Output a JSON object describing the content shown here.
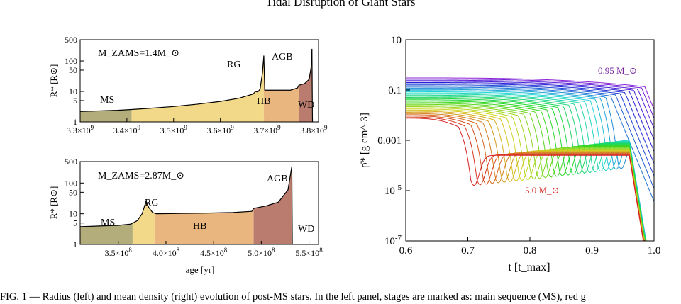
{
  "page": {
    "running_title": "Tidal Disruption of Giant Stars",
    "caption": "FIG. 1 — Radius (left) and mean density (right) evolution of post-MS stars. In the left panel, stages are marked as: main sequence (MS), red g"
  },
  "colors": {
    "ms": "#b3ad7c",
    "rg": "#f2d98a",
    "hb": "#e8b67e",
    "agb": "#b97c6e",
    "line": "#000000"
  },
  "chart_data": [
    {
      "type": "area",
      "id": "left-top",
      "annotation": "M_ZAMS=1.4M_⊙",
      "xlabel": "",
      "ylabel": "R* [R⊙]",
      "xlim": [
        3300000000.0,
        3810000000.0
      ],
      "ylim": [
        1,
        500
      ],
      "yscale": "log",
      "x_ticks": [
        "3.3×10^9",
        "3.4×10^9",
        "3.5×10^9",
        "3.6×10^9",
        "3.7×10^9",
        "3.8×10^9"
      ],
      "y_ticks": [
        "1",
        "5",
        "10",
        "50",
        "100",
        "500"
      ],
      "stages": [
        {
          "label": "MS",
          "start": 3300000000.0,
          "end": 3410000000.0,
          "color": "ms"
        },
        {
          "label": "",
          "start": 3410000000.0,
          "end": 3693000000.0,
          "color": "rg"
        },
        {
          "label": "RG",
          "start": 3693000000.0,
          "end": 3693000000.0,
          "color": "rg"
        },
        {
          "label": "HB",
          "start": 3693000000.0,
          "end": 3768000000.0,
          "color": "hb"
        },
        {
          "label": "AGB",
          "start": 3768000000.0,
          "end": 3796000000.0,
          "color": "agb"
        },
        {
          "label": "WD",
          "start": 3796000000.0,
          "end": 3810000000.0,
          "color": "none"
        }
      ],
      "radius": [
        [
          3300000000.0,
          2.2
        ],
        [
          3340000000.0,
          2.3
        ],
        [
          3380000000.0,
          2.4
        ],
        [
          3410000000.0,
          2.55
        ],
        [
          3450000000.0,
          2.8
        ],
        [
          3500000000.0,
          3.2
        ],
        [
          3550000000.0,
          3.8
        ],
        [
          3600000000.0,
          4.7
        ],
        [
          3640000000.0,
          6.0
        ],
        [
          3670000000.0,
          8.2
        ],
        [
          3675000000.0,
          10
        ],
        [
          3680000000.0,
          9.6
        ],
        [
          3685000000.0,
          12
        ],
        [
          3690000000.0,
          40
        ],
        [
          3693000000.0,
          150
        ],
        [
          3695000000.0,
          11
        ],
        [
          3720000000.0,
          11
        ],
        [
          3750000000.0,
          11
        ],
        [
          3765000000.0,
          13
        ],
        [
          3768000000.0,
          16
        ],
        [
          3780000000.0,
          18
        ],
        [
          3790000000.0,
          25
        ],
        [
          3794000000.0,
          60
        ],
        [
          3796000000.0,
          250
        ],
        [
          3797000000.0,
          1
        ]
      ]
    },
    {
      "type": "area",
      "id": "left-bottom",
      "annotation": "M_ZAMS=2.87M_⊙",
      "xlabel": "age [yr]",
      "ylabel": "R* [R⊙]",
      "xlim": [
        310000000.0,
        560000000.0
      ],
      "ylim": [
        1,
        500
      ],
      "yscale": "log",
      "x_ticks": [
        "3.5×10^8",
        "4.0×10^8",
        "4.5×10^8",
        "5.0×10^8",
        "5.5×10^8"
      ],
      "y_ticks": [
        "1",
        "5",
        "10",
        "50",
        "100",
        "500"
      ],
      "stages": [
        {
          "label": "MS",
          "start": 310000000.0,
          "end": 365000000.0,
          "color": "ms"
        },
        {
          "label": "RG",
          "start": 365000000.0,
          "end": 388000000.0,
          "color": "rg"
        },
        {
          "label": "HB",
          "start": 388000000.0,
          "end": 492000000.0,
          "color": "hb"
        },
        {
          "label": "AGB",
          "start": 492000000.0,
          "end": 532000000.0,
          "color": "agb"
        },
        {
          "label": "WD",
          "start": 532000000.0,
          "end": 560000000.0,
          "color": "none"
        }
      ],
      "radius": [
        [
          310000000.0,
          3.8
        ],
        [
          330000000.0,
          4.0
        ],
        [
          350000000.0,
          4.2
        ],
        [
          363000000.0,
          4.6
        ],
        [
          370000000.0,
          6
        ],
        [
          375000000.0,
          10
        ],
        [
          379000000.0,
          25
        ],
        [
          382000000.0,
          16
        ],
        [
          386000000.0,
          11
        ],
        [
          390000000.0,
          10
        ],
        [
          410000000.0,
          10.2
        ],
        [
          440000000.0,
          10.5
        ],
        [
          470000000.0,
          11
        ],
        [
          490000000.0,
          12
        ],
        [
          492000000.0,
          15
        ],
        [
          505000000.0,
          18
        ],
        [
          518000000.0,
          24
        ],
        [
          528000000.0,
          60
        ],
        [
          532000000.0,
          350
        ],
        [
          532500000.0,
          1
        ]
      ]
    },
    {
      "type": "line",
      "id": "right",
      "xlabel": "t [t_max]",
      "ylabel": "ρ̄* [g cm^-3]",
      "xlim": [
        0.6,
        1.0
      ],
      "ylim": [
        1e-07,
        10
      ],
      "yscale": "log",
      "x_ticks": [
        "0.6",
        "0.7",
        "0.8",
        "0.9",
        "1.0"
      ],
      "y_ticks": [
        "10^-7",
        "10^-5",
        "0.001",
        "0.1",
        "10"
      ],
      "annotations": [
        {
          "text": "0.95 M_⊙",
          "x": 0.94,
          "y": 0.3
        },
        {
          "text": "5.0 M_⊙",
          "x": 0.82,
          "y": 1.5e-05
        }
      ],
      "colormap": "from purple (0.95 M_⊙) through blue, cyan, green, yellow, orange to red (5.0 M_⊙)",
      "series_count": 36
    }
  ]
}
